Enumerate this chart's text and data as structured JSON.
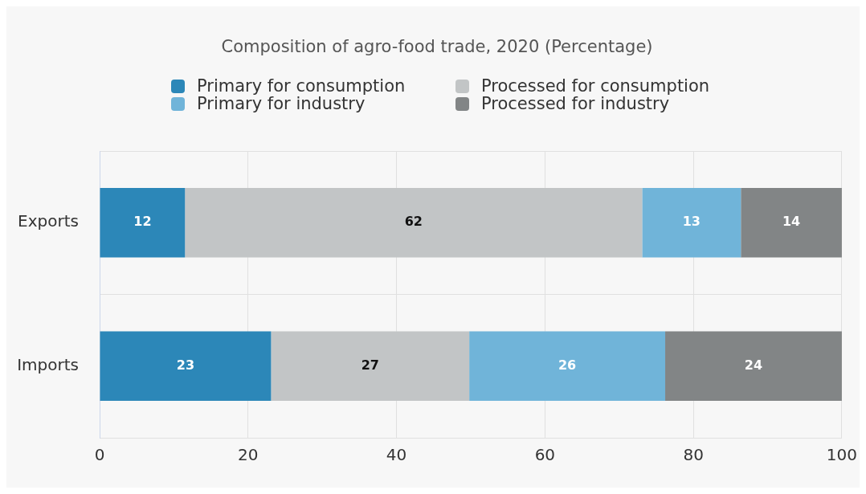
{
  "chart_data": {
    "type": "bar",
    "orientation": "horizontal",
    "stacked": true,
    "title": "Composition of agro-food trade, 2020 (Percentage)",
    "categories": [
      "Exports",
      "Imports"
    ],
    "series": [
      {
        "name": "Primary for consumption",
        "color": "#2c87b8",
        "values": [
          11.5,
          23.1
        ],
        "value_labels": [
          "12",
          "23"
        ]
      },
      {
        "name": "Processed for consumption",
        "color": "#c2c5c6",
        "values": [
          61.6,
          26.7
        ],
        "value_labels": [
          "62",
          "27"
        ]
      },
      {
        "name": "Primary for industry",
        "color": "#70b4d9",
        "values": [
          13.3,
          26.4
        ],
        "value_labels": [
          "13",
          "26"
        ]
      },
      {
        "name": "Processed for industry",
        "color": "#828586",
        "values": [
          13.6,
          23.8
        ],
        "value_labels": [
          "14",
          "24"
        ]
      }
    ],
    "xlim": [
      0,
      100
    ],
    "xticks": [
      0,
      20,
      40,
      60,
      80,
      100
    ],
    "grid": true,
    "legend": "top"
  }
}
